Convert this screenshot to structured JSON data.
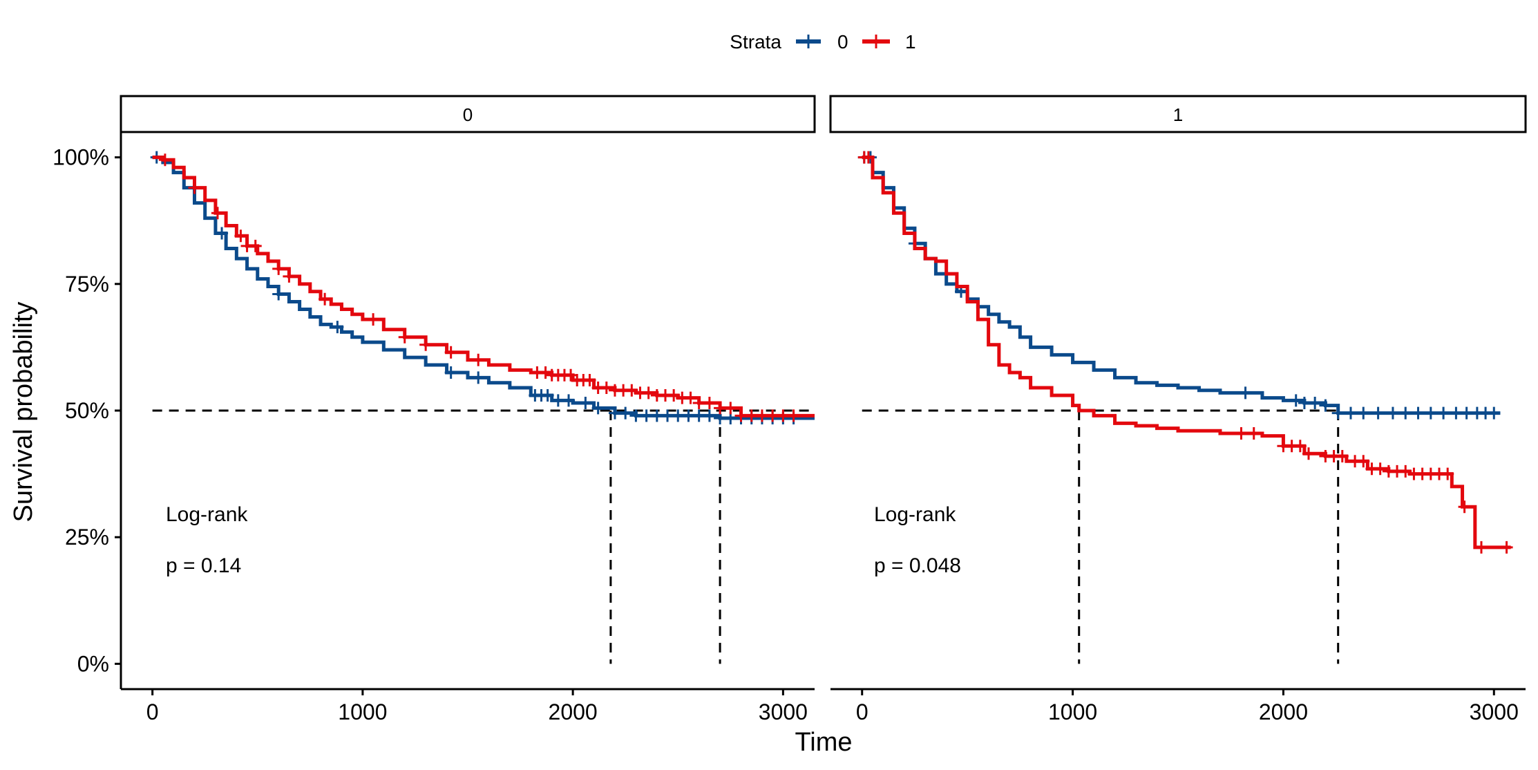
{
  "chart_data": {
    "type": "line",
    "subtype": "kaplan-meier survival curves, faceted",
    "legend": {
      "title": "Strata",
      "position": "top",
      "entries": [
        {
          "label": "0",
          "color": "#0B4A8B"
        },
        {
          "label": "1",
          "color": "#E3080E"
        }
      ]
    },
    "xlabel": "Time",
    "ylabel": "Survival probability",
    "xlim": [
      -150,
      3150
    ],
    "ylim": [
      -0.05,
      1.05
    ],
    "x_ticks": [
      0,
      1000,
      2000,
      3000
    ],
    "x_tick_labels": [
      "0",
      "1000",
      "2000",
      "3000"
    ],
    "y_ticks": [
      0,
      0.25,
      0.5,
      0.75,
      1.0
    ],
    "y_tick_labels": [
      "0%",
      "25%",
      "50%",
      "75%",
      "100%"
    ],
    "grid": false,
    "panels": [
      {
        "strip_label": "0",
        "annotations": {
          "test": "Log-rank",
          "p_value": "p = 0.14"
        },
        "median_line": {
          "y": 0.5,
          "x_end": 3150,
          "medians": [
            2180,
            2700
          ]
        },
        "series": [
          {
            "name": "0",
            "color": "#0B4A8B",
            "x": [
              0,
              50,
              100,
              150,
              200,
              250,
              300,
              350,
              400,
              450,
              500,
              550,
              600,
              650,
              700,
              750,
              800,
              850,
              900,
              950,
              1000,
              1100,
              1200,
              1300,
              1400,
              1500,
              1600,
              1700,
              1800,
              1900,
              2000,
              2100,
              2200,
              2300,
              2400,
              2500,
              2600,
              2700,
              2800,
              2900,
              3000,
              3150
            ],
            "y": [
              1.0,
              0.99,
              0.97,
              0.94,
              0.91,
              0.88,
              0.85,
              0.82,
              0.8,
              0.78,
              0.76,
              0.745,
              0.73,
              0.715,
              0.7,
              0.685,
              0.67,
              0.665,
              0.655,
              0.645,
              0.635,
              0.62,
              0.605,
              0.59,
              0.575,
              0.565,
              0.555,
              0.545,
              0.53,
              0.52,
              0.515,
              0.505,
              0.495,
              0.49,
              0.49,
              0.49,
              0.49,
              0.485,
              0.485,
              0.485,
              0.485,
              0.485
            ],
            "censored_x": [
              20,
              330,
              600,
              880,
              1420,
              1550,
              1820,
              1850,
              1880,
              1930,
              1980,
              2060,
              2120,
              2200,
              2250,
              2300,
              2350,
              2400,
              2450,
              2500,
              2550,
              2600,
              2650,
              2700,
              2750,
              2800,
              2850,
              2900,
              2950,
              3000,
              3050
            ]
          },
          {
            "name": "1",
            "color": "#E3080E",
            "x": [
              0,
              50,
              100,
              150,
              200,
              250,
              300,
              350,
              400,
              450,
              500,
              550,
              600,
              650,
              700,
              750,
              800,
              850,
              900,
              950,
              1000,
              1100,
              1200,
              1300,
              1400,
              1500,
              1600,
              1700,
              1800,
              1900,
              2000,
              2100,
              2200,
              2300,
              2400,
              2500,
              2600,
              2700,
              2800,
              2900,
              3000,
              3150
            ],
            "y": [
              1.0,
              0.995,
              0.98,
              0.96,
              0.94,
              0.915,
              0.89,
              0.865,
              0.845,
              0.825,
              0.81,
              0.795,
              0.78,
              0.765,
              0.75,
              0.735,
              0.72,
              0.71,
              0.7,
              0.69,
              0.68,
              0.66,
              0.645,
              0.63,
              0.615,
              0.6,
              0.59,
              0.58,
              0.575,
              0.57,
              0.56,
              0.545,
              0.54,
              0.535,
              0.53,
              0.525,
              0.515,
              0.505,
              0.49,
              0.49,
              0.49,
              0.49
            ],
            "censored_x": [
              60,
              200,
              310,
              420,
              450,
              490,
              600,
              650,
              820,
              1050,
              1200,
              1300,
              1420,
              1550,
              1830,
              1870,
              1900,
              1930,
              1960,
              1990,
              2020,
              2050,
              2080,
              2120,
              2160,
              2200,
              2240,
              2280,
              2320,
              2360,
              2400,
              2440,
              2480,
              2520,
              2560,
              2600,
              2650,
              2700,
              2750,
              2800,
              2850,
              2900,
              2950,
              3000,
              3050
            ]
          }
        ]
      },
      {
        "strip_label": "1",
        "annotations": {
          "test": "Log-rank",
          "p_value": "p = 0.048"
        },
        "median_line": {
          "y": 0.5,
          "x_end": 2260,
          "medians": [
            1030,
            2260
          ]
        },
        "series": [
          {
            "name": "0",
            "color": "#0B4A8B",
            "x": [
              0,
              50,
              100,
              150,
              200,
              250,
              300,
              350,
              400,
              450,
              500,
              550,
              600,
              650,
              700,
              750,
              800,
              900,
              1000,
              1100,
              1200,
              1300,
              1400,
              1500,
              1600,
              1700,
              1800,
              1900,
              2000,
              2100,
              2200,
              2260,
              2400,
              2600,
              2800,
              3000,
              3030
            ],
            "y": [
              1.0,
              0.97,
              0.94,
              0.9,
              0.86,
              0.83,
              0.8,
              0.77,
              0.75,
              0.735,
              0.72,
              0.705,
              0.69,
              0.675,
              0.665,
              0.645,
              0.625,
              0.61,
              0.595,
              0.58,
              0.565,
              0.555,
              0.55,
              0.545,
              0.54,
              0.535,
              0.535,
              0.525,
              0.52,
              0.515,
              0.51,
              0.495,
              0.495,
              0.495,
              0.495,
              0.495,
              0.495
            ],
            "censored_x": [
              10,
              40,
              250,
              470,
              1820,
              2060,
              2100,
              2150,
              2200,
              2260,
              2320,
              2380,
              2450,
              2520,
              2580,
              2640,
              2700,
              2760,
              2820,
              2870,
              2920,
              2960,
              3000
            ]
          },
          {
            "name": "1",
            "color": "#E3080E",
            "x": [
              0,
              50,
              100,
              150,
              200,
              250,
              300,
              350,
              400,
              450,
              500,
              550,
              600,
              650,
              700,
              750,
              800,
              900,
              1000,
              1030,
              1100,
              1200,
              1300,
              1400,
              1500,
              1700,
              1900,
              2000,
              2100,
              2200,
              2300,
              2400,
              2500,
              2600,
              2700,
              2800,
              2850,
              2900,
              2910,
              3000,
              3080
            ],
            "y": [
              1.0,
              0.96,
              0.93,
              0.89,
              0.85,
              0.82,
              0.8,
              0.795,
              0.77,
              0.745,
              0.715,
              0.68,
              0.63,
              0.59,
              0.575,
              0.565,
              0.545,
              0.53,
              0.51,
              0.5,
              0.49,
              0.475,
              0.47,
              0.465,
              0.46,
              0.455,
              0.45,
              0.43,
              0.415,
              0.41,
              0.4,
              0.385,
              0.38,
              0.375,
              0.375,
              0.35,
              0.31,
              0.31,
              0.23,
              0.23,
              0.23
            ],
            "censored_x": [
              10,
              30,
              1800,
              1860,
              2000,
              2040,
              2080,
              2120,
              2200,
              2240,
              2280,
              2340,
              2380,
              2420,
              2460,
              2500,
              2540,
              2580,
              2620,
              2660,
              2700,
              2740,
              2780,
              2860,
              2940,
              3060
            ]
          }
        ]
      }
    ]
  }
}
